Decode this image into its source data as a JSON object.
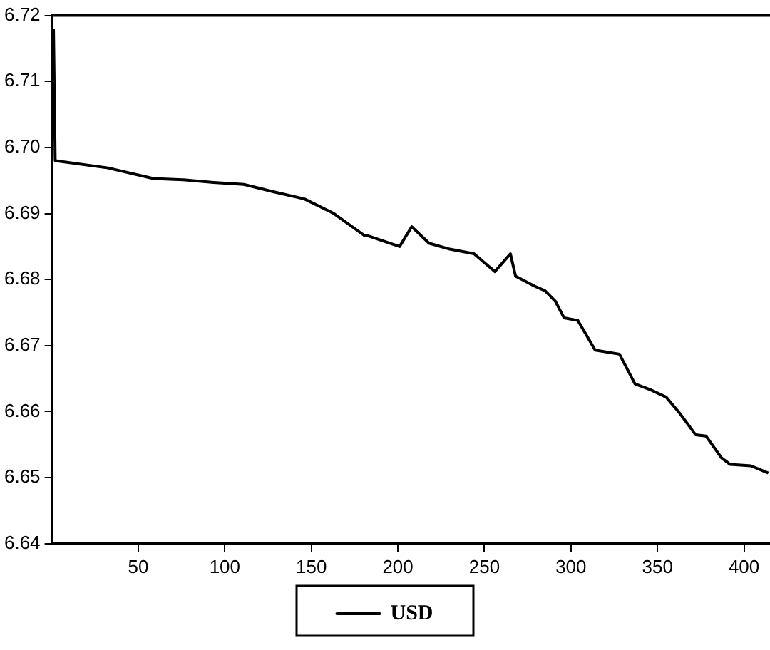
{
  "chart_data": {
    "type": "line",
    "x": [
      1,
      2,
      32.5,
      58.7,
      76,
      93.5,
      111,
      128,
      146,
      163,
      181,
      183,
      201,
      208,
      218,
      230,
      244,
      256,
      265,
      268,
      279,
      285,
      291,
      296,
      304,
      314,
      328,
      337,
      346,
      355,
      363,
      372,
      378,
      387,
      392,
      404,
      414
    ],
    "series": [
      {
        "name": "USD",
        "color": "#000000",
        "values": [
          6.718,
          6.698,
          6.6969,
          6.6953,
          6.6951,
          6.6947,
          6.6944,
          6.6933,
          6.6922,
          6.69,
          6.6866,
          6.6866,
          6.685,
          6.688,
          6.6855,
          6.6846,
          6.6839,
          6.6812,
          6.6839,
          6.6805,
          6.679,
          6.6783,
          6.6767,
          6.6742,
          6.6738,
          6.6693,
          6.6687,
          6.6642,
          6.6633,
          6.6622,
          6.6597,
          6.6565,
          6.6563,
          6.653,
          6.652,
          6.6518,
          6.6507
        ]
      }
    ],
    "xlim": [
      0,
      415
    ],
    "xticks": [
      50,
      100,
      150,
      200,
      250,
      300,
      350,
      400
    ],
    "ylim": [
      6.64,
      6.72
    ],
    "yticks": [
      6.64,
      6.65,
      6.66,
      6.67,
      6.68,
      6.69,
      {
        "value": 6.7,
        "label": "6.70"
      },
      6.71,
      6.72
    ],
    "grid": false,
    "legend": "bottom",
    "marker": "none",
    "line_style": "solid"
  }
}
